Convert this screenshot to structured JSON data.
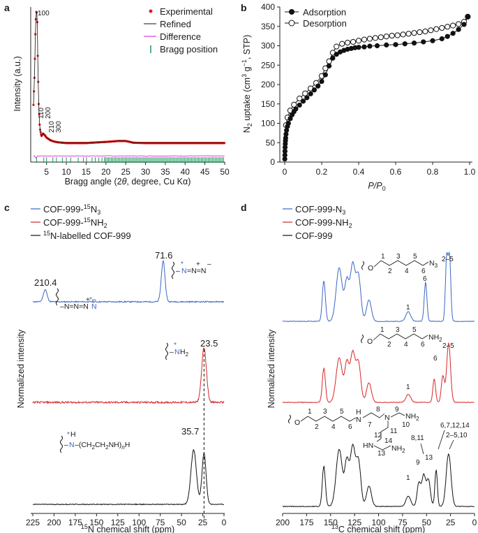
{
  "panels": {
    "a": {
      "label": "a",
      "peak_labels": [
        "100",
        "110",
        "200",
        "210",
        "300"
      ],
      "legend": [
        "Experimental",
        "Refined",
        "Difference",
        "Bragg position"
      ]
    },
    "b": {
      "label": "b",
      "legend": [
        "Adsorption",
        "Desorption"
      ]
    },
    "c": {
      "label": "c",
      "legend": [
        "COF-999-",
        "15",
        "N",
        "3",
        "COF-999-",
        "15",
        "NH",
        "2",
        "15",
        "N-labelled COF-999"
      ],
      "peaks": [
        "210.4",
        "71.6",
        "23.5",
        "35.7"
      ],
      "molecules": {
        "azide": [
          "–N=N=N",
          "–",
          "N",
          "=N=N",
          "+",
          "+",
          "–",
          "–"
        ],
        "amine": [
          "–",
          "N",
          "H",
          "2",
          "*"
        ],
        "pei": [
          "–",
          "N",
          "–(CH",
          "2",
          "CH",
          "2",
          "NH)",
          "n",
          "H",
          "H",
          "*"
        ]
      }
    },
    "d": {
      "label": "d",
      "legend": [
        "COF-999-N",
        "3",
        "COF-999-NH",
        "2",
        "COF-999"
      ],
      "molecules": {
        "top": {
          "O": "O",
          "N3": "N",
          "N3sub": "3",
          "nums": [
            "1",
            "2",
            "3",
            "4",
            "5",
            "6"
          ]
        },
        "mid": {
          "O": "O",
          "NH2": "NH",
          "NH2sub": "2",
          "nums": [
            "1",
            "2",
            "3",
            "4",
            "5",
            "6"
          ]
        },
        "bottom": {
          "O": "O",
          "atoms": [
            "H",
            "N",
            "N",
            "NH",
            "2",
            "HN",
            "NH",
            "2"
          ],
          "nums": [
            "1",
            "2",
            "3",
            "4",
            "5",
            "6",
            "7",
            "8",
            "9",
            "10",
            "11",
            "12",
            "13",
            "14"
          ]
        }
      },
      "annotations": [
        "6",
        "1",
        "2–5",
        "6",
        "1",
        "2–5",
        "1",
        "9",
        "8,11",
        "13",
        "6,7,12,14",
        "2–5,10"
      ]
    }
  },
  "chart_data": [
    {
      "id": "a",
      "type": "line",
      "title": "",
      "xlabel": "Bragg angle (2θ, degree, Cu Kα)",
      "ylabel": "Intensity (a.u.)",
      "xlim": [
        1,
        50
      ],
      "ylim": [
        -0.12,
        1.0
      ],
      "xticks": [
        5,
        10,
        15,
        20,
        25,
        30,
        35,
        40,
        45,
        50
      ],
      "peaks": [
        {
          "label": "100",
          "x": 2.5
        },
        {
          "label": "110",
          "x": 4.3
        },
        {
          "label": "200",
          "x": 5.0
        },
        {
          "label": "210",
          "x": 6.6
        },
        {
          "label": "300",
          "x": 7.5
        }
      ],
      "series": [
        {
          "name": "Experimental",
          "color": "#e41a1c",
          "x": [
            1.7,
            2.0,
            2.2,
            2.35,
            2.5,
            2.65,
            2.8,
            3.0,
            3.3,
            3.7,
            4.1,
            4.5,
            5.0,
            5.5,
            6.0,
            7.0,
            8.0,
            10.0,
            12.0,
            15.0,
            18.0,
            21.0,
            23.0,
            25.0,
            27.0,
            30.0,
            35.0,
            40.0,
            45.0,
            50.0
          ],
          "y": [
            0.3,
            0.55,
            0.85,
            0.97,
            1.0,
            0.93,
            0.62,
            0.32,
            0.13,
            0.07,
            0.09,
            0.08,
            0.06,
            0.05,
            0.04,
            0.03,
            0.025,
            0.02,
            0.02,
            0.02,
            0.025,
            0.03,
            0.035,
            0.035,
            0.022,
            0.02,
            0.02,
            0.02,
            0.02,
            0.02
          ]
        },
        {
          "name": "Refined",
          "color": "#111111"
        },
        {
          "name": "Difference",
          "color": "#e040e0",
          "offset": -0.075
        },
        {
          "name": "Bragg position",
          "color": "#1a9a5a"
        }
      ]
    },
    {
      "id": "b",
      "type": "line",
      "xlabel": "P/P0",
      "ylabel": "N2 uptake (cm3 g−1, STP)",
      "xlim": [
        0,
        1.0
      ],
      "ylim": [
        0,
        400
      ],
      "xticks": [
        0,
        0.2,
        0.4,
        0.6,
        0.8,
        1.0
      ],
      "yticks": [
        0,
        50,
        100,
        150,
        200,
        250,
        300,
        350,
        400
      ],
      "series": [
        {
          "name": "Adsorption",
          "marker": "filled",
          "x": [
            0.0005,
            0.001,
            0.0015,
            0.002,
            0.003,
            0.004,
            0.005,
            0.007,
            0.01,
            0.015,
            0.02,
            0.03,
            0.04,
            0.05,
            0.06,
            0.08,
            0.1,
            0.12,
            0.14,
            0.16,
            0.18,
            0.2,
            0.22,
            0.24,
            0.26,
            0.28,
            0.3,
            0.32,
            0.34,
            0.36,
            0.38,
            0.4,
            0.43,
            0.46,
            0.5,
            0.55,
            0.6,
            0.65,
            0.7,
            0.75,
            0.8,
            0.85,
            0.88,
            0.91,
            0.94,
            0.97,
            0.99
          ],
          "y": [
            8,
            18,
            28,
            38,
            47,
            55,
            62,
            72,
            82,
            92,
            100,
            112,
            122,
            130,
            137,
            147,
            157,
            166,
            176,
            186,
            196,
            208,
            225,
            248,
            268,
            278,
            284,
            288,
            291,
            293,
            295,
            296,
            297,
            299,
            300,
            302,
            303,
            305,
            307,
            310,
            313,
            318,
            324,
            332,
            342,
            355,
            375
          ]
        },
        {
          "name": "Desorption",
          "marker": "open",
          "x": [
            0.99,
            0.97,
            0.94,
            0.91,
            0.88,
            0.85,
            0.82,
            0.79,
            0.76,
            0.73,
            0.7,
            0.67,
            0.64,
            0.61,
            0.58,
            0.55,
            0.52,
            0.49,
            0.46,
            0.43,
            0.4,
            0.37,
            0.34,
            0.31,
            0.28,
            0.26,
            0.24,
            0.22,
            0.2,
            0.17,
            0.14,
            0.11,
            0.08,
            0.05,
            0.03,
            0.015,
            0.007
          ],
          "y": [
            375,
            362,
            356,
            352,
            349,
            346,
            343,
            340,
            337,
            335,
            333,
            331,
            329,
            327,
            326,
            324,
            322,
            320,
            318,
            316,
            313,
            310,
            308,
            305,
            298,
            282,
            260,
            242,
            222,
            204,
            190,
            177,
            164,
            148,
            133,
            115,
            95
          ]
        }
      ]
    },
    {
      "id": "c",
      "type": "line",
      "xlabel": "15N chemical shift (ppm)",
      "ylabel": "Normalized intensity",
      "xlim": [
        225,
        0
      ],
      "xticks": [
        225,
        200,
        175,
        150,
        125,
        100,
        75,
        50,
        25,
        0
      ],
      "dashed_line_x": 23.5,
      "series": [
        {
          "name": "COF-999-15N3",
          "color": "#3a66c4",
          "peaks": [
            {
              "x": 210.4,
              "h": 0.3,
              "w": 2.2
            },
            {
              "x": 71.6,
              "h": 1.0,
              "w": 2.2
            }
          ],
          "noise": 0.03
        },
        {
          "name": "COF-999-15NH2",
          "color": "#d62728",
          "peaks": [
            {
              "x": 23.5,
              "h": 1.0,
              "w": 2.8
            }
          ],
          "noise": 0.035
        },
        {
          "name": "15N-labelled COF-999",
          "color": "#111111",
          "peaks": [
            {
              "x": 35.7,
              "h": 0.78,
              "w": 3.2
            },
            {
              "x": 23.5,
              "h": 0.73,
              "w": 2.4
            }
          ],
          "noise": 0.012
        }
      ]
    },
    {
      "id": "d",
      "type": "line",
      "xlabel": "13C chemical shift (ppm)",
      "ylabel": "Normalized intensity",
      "xlim": [
        200,
        0
      ],
      "xticks": [
        200,
        175,
        150,
        125,
        100,
        75,
        50,
        25,
        0
      ],
      "series": [
        {
          "name": "COF-999-N3",
          "color": "#3a66c4",
          "peaks": [
            {
              "x": 157,
              "h": 0.62,
              "w": 1.6
            },
            {
              "x": 141,
              "h": 0.82,
              "w": 3.2
            },
            {
              "x": 133,
              "h": 0.6,
              "w": 2.2
            },
            {
              "x": 127,
              "h": 0.86,
              "w": 2.5
            },
            {
              "x": 121,
              "h": 0.7,
              "w": 2.5
            },
            {
              "x": 110,
              "h": 0.33,
              "w": 2.5
            },
            {
              "x": 69,
              "h": 0.15,
              "w": 2.5
            },
            {
              "x": 51,
              "h": 0.6,
              "w": 1.4
            },
            {
              "x": 29,
              "h": 0.98,
              "w": 1.3
            },
            {
              "x": 26,
              "h": 0.98,
              "w": 1.3
            }
          ]
        },
        {
          "name": "COF-999-NH2",
          "color": "#d62728",
          "peaks": [
            {
              "x": 157,
              "h": 0.52,
              "w": 1.6
            },
            {
              "x": 141,
              "h": 0.68,
              "w": 3.2
            },
            {
              "x": 133,
              "h": 0.58,
              "w": 2.2
            },
            {
              "x": 127,
              "h": 0.74,
              "w": 2.5
            },
            {
              "x": 121,
              "h": 0.6,
              "w": 2.5
            },
            {
              "x": 110,
              "h": 0.3,
              "w": 2.5
            },
            {
              "x": 69,
              "h": 0.12,
              "w": 2.5
            },
            {
              "x": 42,
              "h": 0.36,
              "w": 1.4
            },
            {
              "x": 33,
              "h": 0.4,
              "w": 1.6
            },
            {
              "x": 27,
              "h": 0.9,
              "w": 2.0
            }
          ]
        },
        {
          "name": "COF-999",
          "color": "#111111",
          "peaks": [
            {
              "x": 157,
              "h": 0.55,
              "w": 1.6
            },
            {
              "x": 141,
              "h": 0.78,
              "w": 3.2
            },
            {
              "x": 133,
              "h": 0.6,
              "w": 2.2
            },
            {
              "x": 127,
              "h": 0.8,
              "w": 2.5
            },
            {
              "x": 121,
              "h": 0.62,
              "w": 2.5
            },
            {
              "x": 110,
              "h": 0.28,
              "w": 2.5
            },
            {
              "x": 69,
              "h": 0.14,
              "w": 2.5
            },
            {
              "x": 58,
              "h": 0.32,
              "w": 1.8
            },
            {
              "x": 53,
              "h": 0.42,
              "w": 2.0
            },
            {
              "x": 48,
              "h": 0.36,
              "w": 2.0
            },
            {
              "x": 40,
              "h": 0.5,
              "w": 1.3
            },
            {
              "x": 27,
              "h": 0.72,
              "w": 2.5
            }
          ]
        }
      ]
    }
  ]
}
